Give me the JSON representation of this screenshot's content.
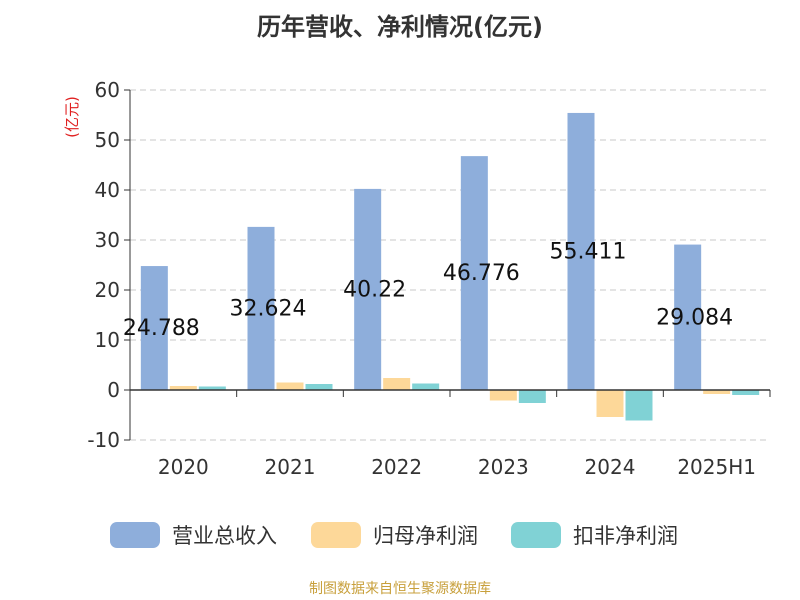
{
  "chart_data": {
    "type": "bar",
    "title": "历年营收、净利情况(亿元)",
    "ylabel": "(亿元)",
    "categories": [
      "2020",
      "2021",
      "2022",
      "2023",
      "2024",
      "2025H1"
    ],
    "ylim": [
      -10,
      60
    ],
    "yticks": [
      60,
      50,
      40,
      30,
      20,
      10,
      0,
      -10
    ],
    "grid": true,
    "legend_position": "bottom",
    "series": [
      {
        "name": "营业总收入",
        "color": "#8eaedb",
        "values": [
          24.788,
          32.624,
          40.22,
          46.776,
          55.411,
          29.084
        ],
        "labels": [
          "24.788",
          "32.624",
          "40.22",
          "46.776",
          "55.411",
          "29.084"
        ]
      },
      {
        "name": "归母净利润",
        "color": "#fdd899",
        "values": [
          0.8,
          1.5,
          2.4,
          -2.1,
          -5.4,
          -0.8
        ]
      },
      {
        "name": "扣非净利润",
        "color": "#80d2d5",
        "values": [
          0.7,
          1.2,
          1.3,
          -2.6,
          -6.1,
          -1.0
        ]
      }
    ]
  },
  "source": "制图数据来自恒生聚源数据库"
}
